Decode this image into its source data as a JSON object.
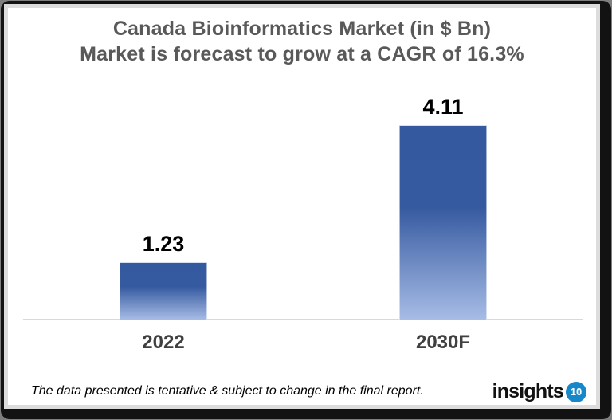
{
  "chart_data": {
    "type": "bar",
    "title": "Canada Bioinformatics Market (in $ Bn)",
    "subtitle": "Market is forecast to grow at a CAGR of 16.3%",
    "categories": [
      "2022",
      "2030F"
    ],
    "values": [
      1.23,
      4.11
    ],
    "value_labels": [
      "1.23",
      "4.11"
    ],
    "ylim": [
      0,
      4.5
    ],
    "grid": false,
    "legend": "none",
    "bar_gradient_top": "#35599E",
    "bar_gradient_bottom": "#A7BCE6",
    "axis_line_color": "#D9D9D9",
    "title_color": "#595959"
  },
  "footer": {
    "disclaimer": "The data presented is tentative & subject to change in the final report.",
    "logo_text": "insights",
    "logo_badge": "10",
    "logo_badge_color": "#1687C9"
  }
}
